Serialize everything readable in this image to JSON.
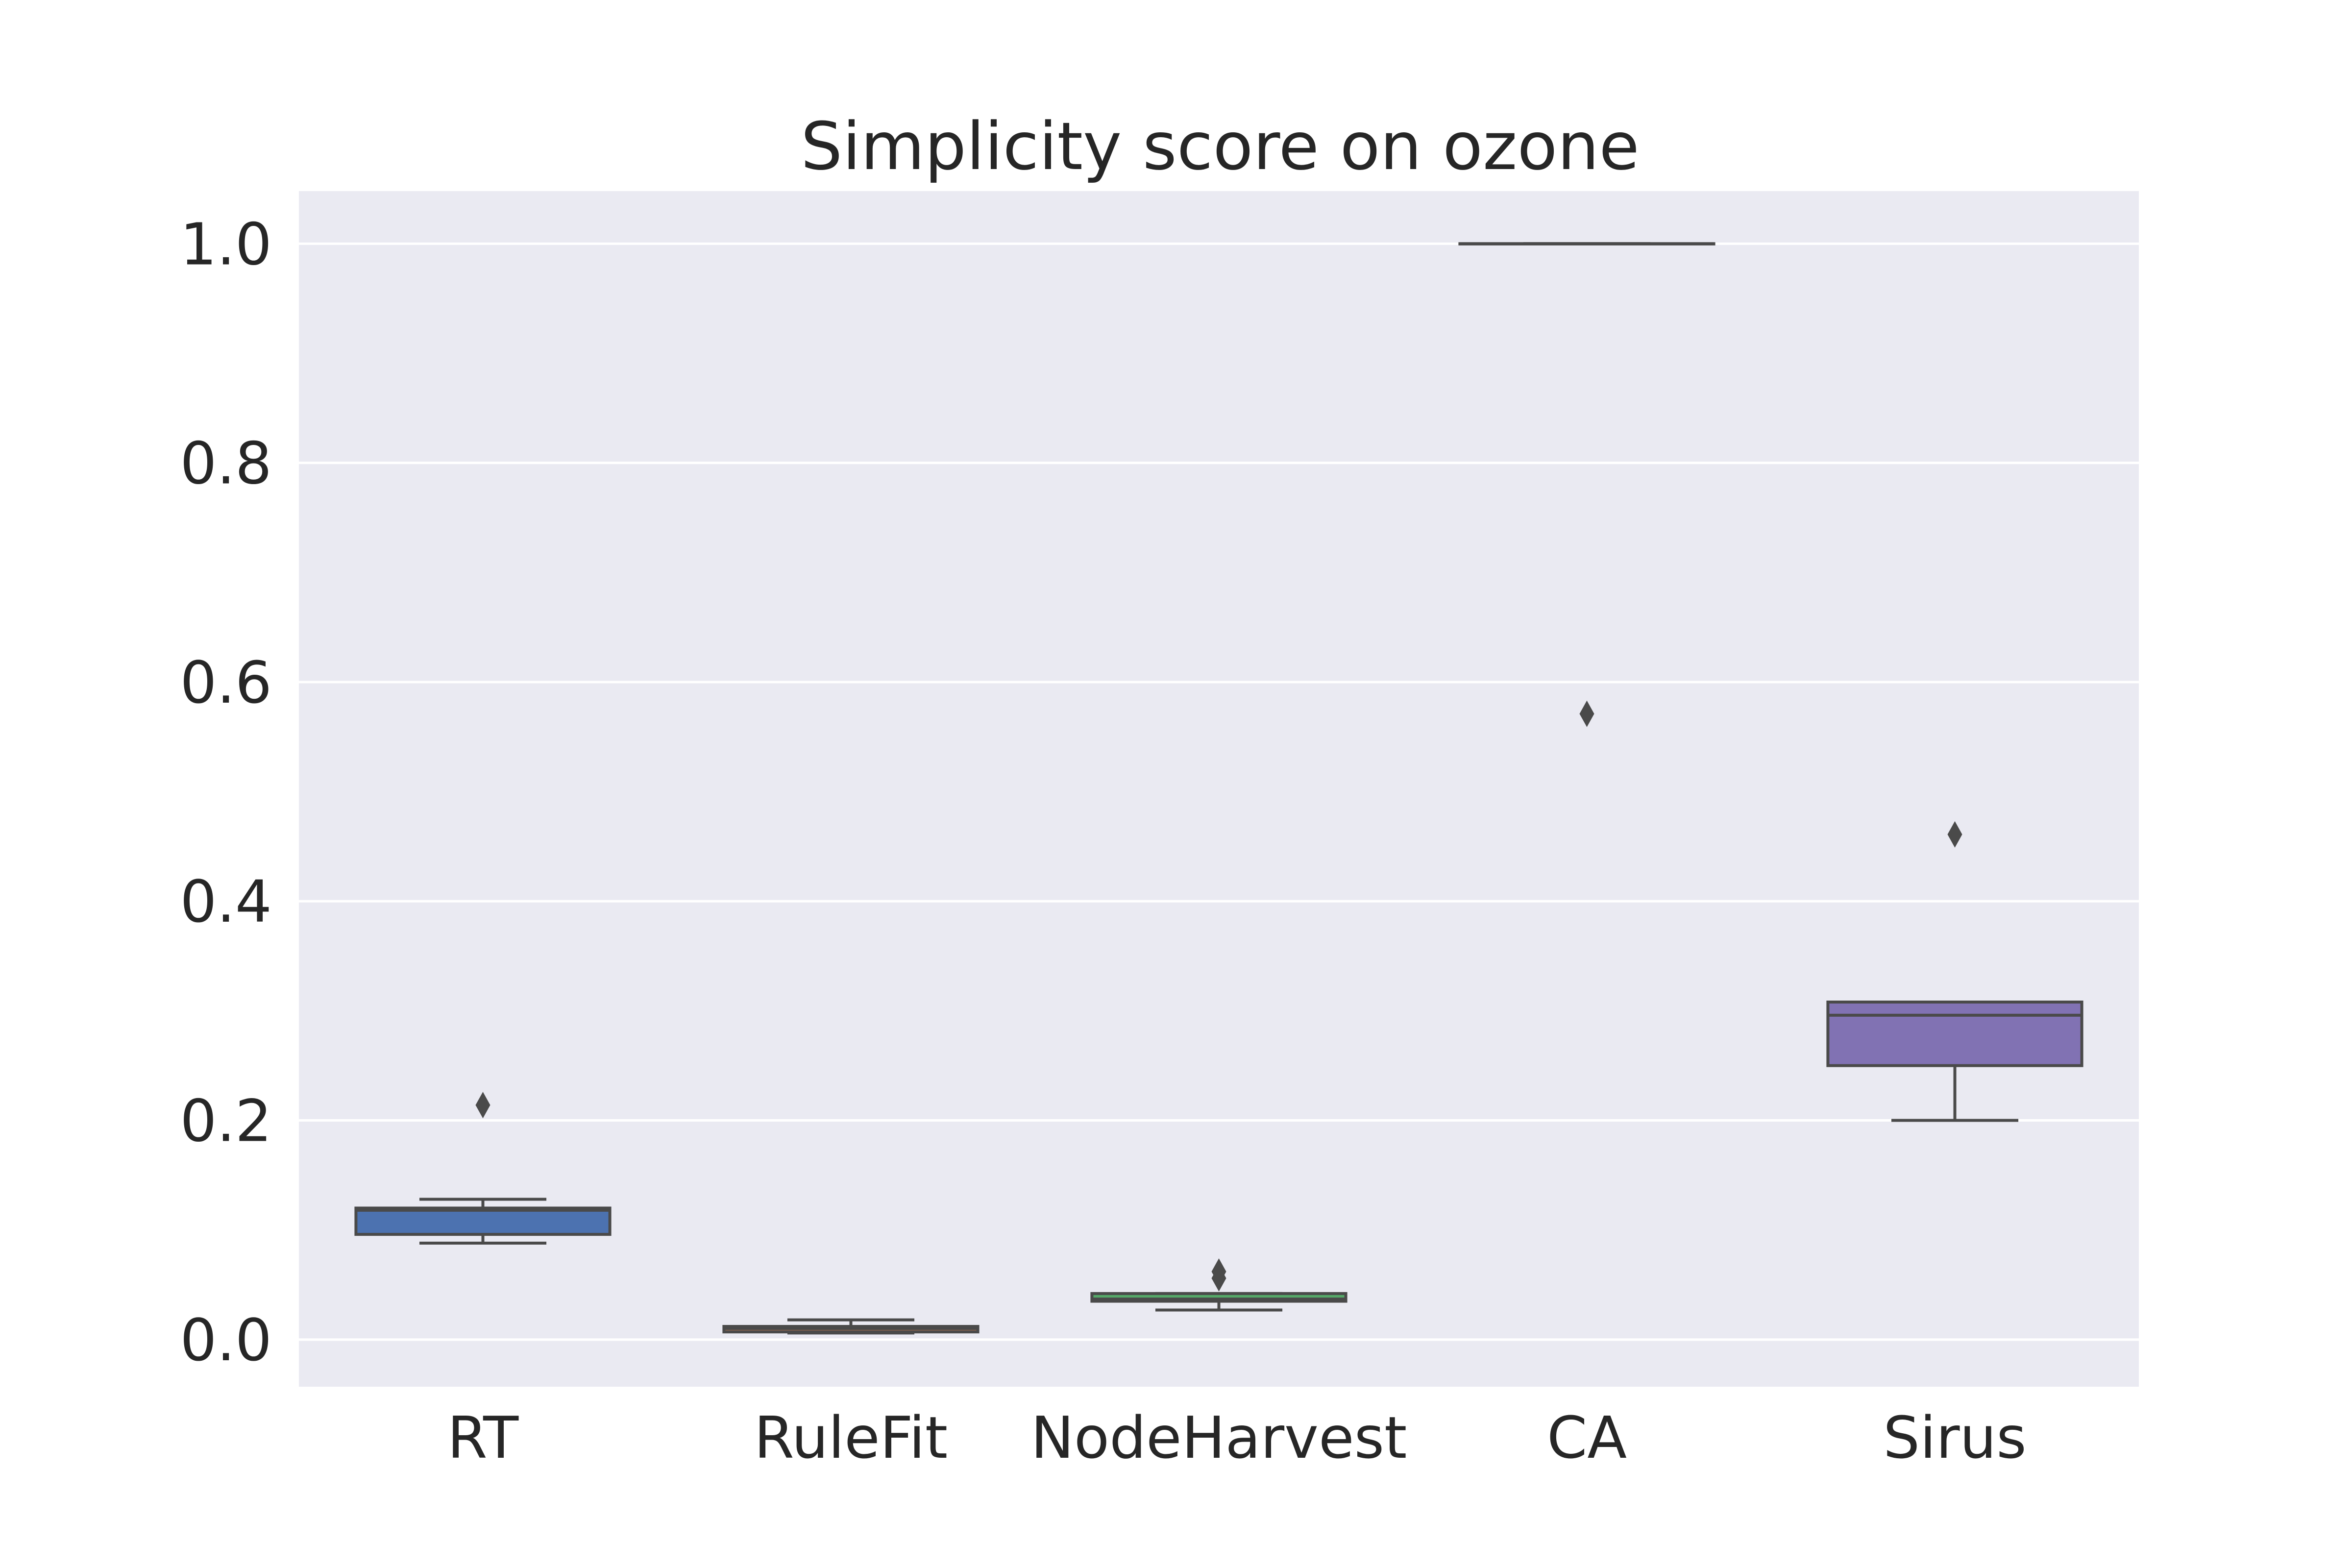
{
  "chart_data": {
    "type": "box",
    "title": "Simplicity score on ozone",
    "xlabel": "",
    "ylabel": "",
    "categories": [
      "RT",
      "RuleFit",
      "NodeHarvest",
      "CA",
      "Sirus"
    ],
    "ylim": [
      -0.043,
      1.048
    ],
    "yticks": [
      0.0,
      0.2,
      0.4,
      0.6,
      0.8,
      1.0
    ],
    "ytick_labels": [
      "0.0",
      "0.2",
      "0.4",
      "0.6",
      "0.8",
      "1.0"
    ],
    "grid": true,
    "background": "#eaeaf2",
    "boxes": [
      {
        "category": "RT",
        "whisker_low": 0.088,
        "q1": 0.096,
        "median": 0.118,
        "q3": 0.12,
        "whisker_high": 0.128,
        "outliers": [
          0.214
        ],
        "color": "#4c72b0"
      },
      {
        "category": "RuleFit",
        "whisker_low": 0.006,
        "q1": 0.007,
        "median": 0.01,
        "q3": 0.012,
        "whisker_high": 0.018,
        "outliers": [],
        "color": "#dd8452"
      },
      {
        "category": "NodeHarvest",
        "whisker_low": 0.027,
        "q1": 0.035,
        "median": 0.037,
        "q3": 0.042,
        "whisker_high": 0.042,
        "outliers": [
          0.056,
          0.062
        ],
        "color": "#55a868"
      },
      {
        "category": "CA",
        "whisker_low": 1.0,
        "q1": 1.0,
        "median": 1.0,
        "q3": 1.0,
        "whisker_high": 1.0,
        "outliers": [
          0.571
        ],
        "color": "#c44e52"
      },
      {
        "category": "Sirus",
        "whisker_low": 0.2,
        "q1": 0.25,
        "median": 0.296,
        "q3": 0.308,
        "whisker_high": 0.308,
        "outliers": [
          0.461
        ],
        "color": "#8172b3"
      }
    ]
  }
}
